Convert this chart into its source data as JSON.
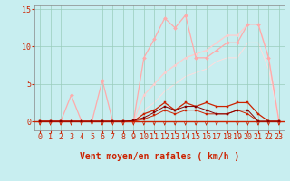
{
  "xlabel": "Vent moyen/en rafales ( km/h )",
  "xlim": [
    -0.5,
    23.5
  ],
  "ylim": [
    -1.2,
    15.5
  ],
  "yticks": [
    0,
    5,
    10,
    15
  ],
  "xticks": [
    0,
    1,
    2,
    3,
    4,
    5,
    6,
    7,
    8,
    9,
    10,
    11,
    12,
    13,
    14,
    15,
    16,
    17,
    18,
    19,
    20,
    21,
    22,
    23
  ],
  "bg_color": "#c8eef0",
  "grid_color": "#99ccbb",
  "tick_fontsize": 6,
  "label_fontsize": 7,
  "arrow_color": "#cc2200",
  "lines": [
    {
      "x": [
        0,
        1,
        2,
        3,
        4,
        5,
        6,
        7,
        8,
        9,
        10,
        11,
        12,
        13,
        14,
        15,
        16,
        17,
        18,
        19,
        20,
        21,
        22,
        23
      ],
      "y": [
        0,
        0,
        0,
        3.5,
        0,
        0,
        5.5,
        0,
        0,
        0,
        8.5,
        11.0,
        13.8,
        12.5,
        14.2,
        8.5,
        8.5,
        9.5,
        10.5,
        10.5,
        13.0,
        13.0,
        8.5,
        0
      ],
      "color": "#ffaaaa",
      "lw": 0.9,
      "marker": "D",
      "ms": 2.0,
      "zorder": 3
    },
    {
      "x": [
        0,
        1,
        2,
        3,
        4,
        5,
        6,
        7,
        8,
        9,
        10,
        11,
        12,
        13,
        14,
        15,
        16,
        17,
        18,
        19,
        20,
        21,
        22,
        23
      ],
      "y": [
        0,
        0,
        0,
        0,
        0,
        0,
        0,
        0,
        0,
        0,
        3.5,
        5.0,
        6.5,
        7.5,
        8.5,
        9.0,
        9.5,
        10.5,
        11.5,
        11.5,
        13.0,
        13.0,
        8.5,
        0
      ],
      "color": "#ffcccc",
      "lw": 0.9,
      "marker": "D",
      "ms": 1.5,
      "zorder": 2
    },
    {
      "x": [
        0,
        1,
        2,
        3,
        4,
        5,
        6,
        7,
        8,
        9,
        10,
        11,
        12,
        13,
        14,
        15,
        16,
        17,
        18,
        19,
        20,
        21,
        22,
        23
      ],
      "y": [
        0,
        0,
        0,
        0,
        0,
        0,
        0,
        0,
        0,
        0,
        1.5,
        2.5,
        4.0,
        5.0,
        6.0,
        6.5,
        7.0,
        8.0,
        8.5,
        8.5,
        10.5,
        10.5,
        7.0,
        0
      ],
      "color": "#ffdddd",
      "lw": 0.7,
      "marker": null,
      "ms": 0,
      "zorder": 1
    },
    {
      "x": [
        0,
        1,
        2,
        3,
        4,
        5,
        6,
        7,
        8,
        9,
        10,
        11,
        12,
        13,
        14,
        15,
        16,
        17,
        18,
        19,
        20,
        21,
        22,
        23
      ],
      "y": [
        0,
        0,
        0,
        0,
        0,
        0,
        0,
        0,
        0,
        0,
        1.0,
        1.5,
        2.5,
        1.5,
        2.5,
        2.0,
        2.5,
        2.0,
        2.0,
        2.5,
        2.5,
        1.0,
        0,
        0
      ],
      "color": "#cc2200",
      "lw": 0.9,
      "marker": "s",
      "ms": 2.0,
      "zorder": 4
    },
    {
      "x": [
        0,
        1,
        2,
        3,
        4,
        5,
        6,
        7,
        8,
        9,
        10,
        11,
        12,
        13,
        14,
        15,
        16,
        17,
        18,
        19,
        20,
        21,
        22,
        23
      ],
      "y": [
        0,
        0,
        0,
        0,
        0,
        0,
        0,
        0,
        0,
        0,
        0.3,
        0.8,
        1.5,
        1.0,
        1.5,
        1.5,
        1.0,
        1.0,
        1.0,
        1.5,
        1.0,
        0,
        0,
        0
      ],
      "color": "#cc2200",
      "lw": 0.7,
      "marker": "s",
      "ms": 1.5,
      "zorder": 4
    },
    {
      "x": [
        0,
        1,
        2,
        3,
        4,
        5,
        6,
        7,
        8,
        9,
        10,
        11,
        12,
        13,
        14,
        15,
        16,
        17,
        18,
        19,
        20,
        21,
        22,
        23
      ],
      "y": [
        0,
        0,
        0,
        0,
        0,
        0,
        0,
        0,
        0,
        0.1,
        0.5,
        1.2,
        2.0,
        1.5,
        2.0,
        2.0,
        1.5,
        1.0,
        1.0,
        1.5,
        1.5,
        0,
        0,
        0
      ],
      "color": "#880000",
      "lw": 0.7,
      "marker": "s",
      "ms": 1.5,
      "zorder": 4
    }
  ]
}
